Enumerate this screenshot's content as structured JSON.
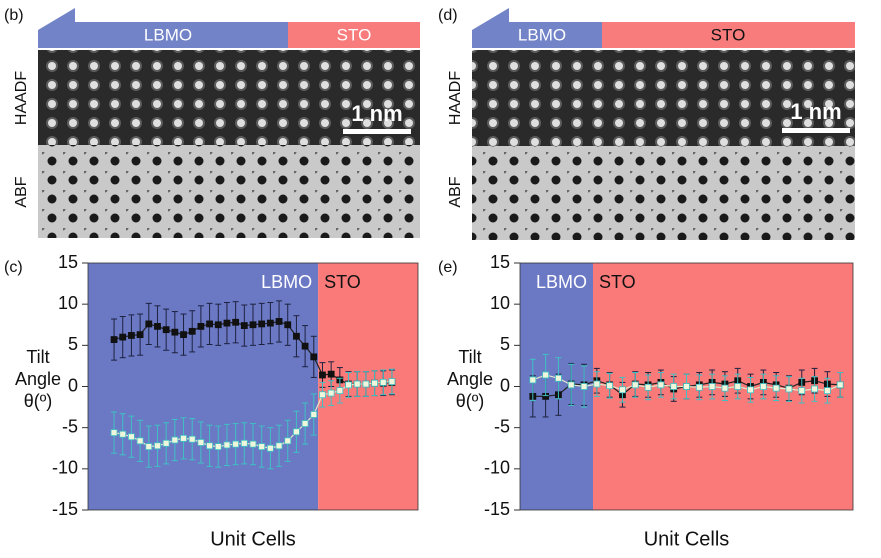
{
  "panels": [
    {
      "label": "(b)",
      "bar": [
        "LBMO",
        "STO"
      ],
      "rows": [
        "HAADF",
        "ABF"
      ],
      "scale": "1 nm"
    },
    {
      "label": "(d)",
      "bar": [
        "LBMO",
        "STO"
      ],
      "rows": [
        "HAADF",
        "ABF"
      ],
      "scale": "1 nm"
    }
  ],
  "chart_data": [
    {
      "type": "line",
      "label": "(c)",
      "xlabel": "Unit Cells",
      "ylabel": [
        "Tilt",
        "Angle",
        "θ(º)"
      ],
      "xlim": [
        0,
        38
      ],
      "ylim": [
        -15,
        15
      ],
      "yticks": [
        -15,
        -10,
        -5,
        0,
        5,
        10,
        15
      ],
      "regions": [
        {
          "name": "LBMO",
          "color": "#6b79c4",
          "xlim": [
            0,
            26.5
          ]
        },
        {
          "name": "STO",
          "color": "#fa7a7a",
          "xlim": [
            26.5,
            38
          ]
        }
      ],
      "x": [
        3,
        4,
        5,
        6,
        7,
        8,
        9,
        10,
        11,
        12,
        13,
        14,
        15,
        16,
        17,
        18,
        19,
        20,
        21,
        22,
        23,
        24,
        25,
        26,
        27,
        28,
        29,
        30,
        31,
        32,
        33,
        34,
        35
      ],
      "series": [
        {
          "color": "#111111",
          "error_color": "#1c2140",
          "values": [
            5.7,
            6.0,
            6.2,
            6.3,
            7.6,
            7.3,
            6.9,
            6.6,
            6.3,
            6.7,
            7.3,
            7.6,
            7.5,
            7.7,
            7.8,
            7.4,
            7.5,
            7.6,
            7.7,
            7.9,
            7.5,
            6.1,
            4.9,
            3.6,
            1.4,
            1.5,
            0.8,
            0.3,
            0.3,
            0.3,
            0.4,
            0.4,
            0.5
          ],
          "errors": [
            2.5,
            2.5,
            2.5,
            2.5,
            2.5,
            2.5,
            2.5,
            2.5,
            2.5,
            2.5,
            2.5,
            2.5,
            2.5,
            2.5,
            2.5,
            2.5,
            2.5,
            2.5,
            2.5,
            2.5,
            2.5,
            2.5,
            2.5,
            2.5,
            1.5,
            1.5,
            1.5,
            1.5,
            1.5,
            1.5,
            1.5,
            1.5,
            1.5
          ]
        },
        {
          "color": "#eef6dc",
          "error_color": "#3fc0c4",
          "values": [
            -5.6,
            -5.8,
            -6.1,
            -6.6,
            -7.3,
            -7.2,
            -6.9,
            -6.5,
            -6.3,
            -6.4,
            -6.8,
            -7.2,
            -7.3,
            -7.1,
            -7.0,
            -6.9,
            -7.0,
            -7.3,
            -7.5,
            -7.2,
            -6.6,
            -5.5,
            -4.5,
            -3.4,
            -1.0,
            -0.8,
            -0.5,
            0.2,
            0.3,
            0.3,
            0.4,
            0.5,
            0.6
          ],
          "errors": [
            2.5,
            2.5,
            2.5,
            2.5,
            2.5,
            2.5,
            2.5,
            2.5,
            2.5,
            2.5,
            2.5,
            2.5,
            2.5,
            2.5,
            2.5,
            2.5,
            2.5,
            2.5,
            2.5,
            2.5,
            2.5,
            2.5,
            2.5,
            2.5,
            1.5,
            1.5,
            1.5,
            1.5,
            1.5,
            1.5,
            1.5,
            1.5,
            1.5
          ]
        }
      ]
    },
    {
      "type": "line",
      "label": "(e)",
      "xlabel": "Unit Cells",
      "ylabel": [
        "Tilt",
        "Angle",
        "θ(º)"
      ],
      "xlim": [
        0,
        26
      ],
      "ylim": [
        -15,
        15
      ],
      "yticks": [
        -15,
        -10,
        -5,
        0,
        5,
        10,
        15
      ],
      "regions": [
        {
          "name": "LBMO",
          "color": "#6b79c4",
          "xlim": [
            0,
            5.7
          ]
        },
        {
          "name": "STO",
          "color": "#fa7a7a",
          "xlim": [
            5.7,
            26
          ]
        }
      ],
      "x": [
        1,
        2,
        3,
        4,
        5,
        6,
        7,
        8,
        9,
        10,
        11,
        12,
        13,
        14,
        15,
        16,
        17,
        18,
        19,
        20,
        21,
        22,
        23,
        24,
        25
      ],
      "series": [
        {
          "color": "#111111",
          "error_color": "#1c2140",
          "values": [
            -1.2,
            -1.2,
            -1.0,
            0.3,
            0.2,
            0.7,
            0.2,
            -1.0,
            0.3,
            0.2,
            0.5,
            -0.3,
            0.0,
            0.2,
            0.5,
            0.3,
            0.7,
            0.0,
            0.5,
            0.2,
            -0.2,
            0.5,
            0.7,
            0.3,
            0.2
          ],
          "errors": [
            2.5,
            2.5,
            2.5,
            2.5,
            2.5,
            1.5,
            1.5,
            1.5,
            1.5,
            1.5,
            1.5,
            1.5,
            1.5,
            1.5,
            1.5,
            1.5,
            1.5,
            1.5,
            1.5,
            1.5,
            1.5,
            1.5,
            1.5,
            1.5,
            1.5
          ]
        },
        {
          "color": "#eef6dc",
          "error_color": "#3fc0c4",
          "values": [
            0.8,
            1.4,
            1.0,
            0.2,
            0.0,
            0.3,
            0.1,
            -0.4,
            0.2,
            -0.1,
            0.2,
            0.0,
            0.0,
            -0.1,
            0.0,
            -0.2,
            0.0,
            -0.4,
            0.0,
            -0.2,
            -0.3,
            -0.5,
            -0.3,
            -0.5,
            0.2
          ],
          "errors": [
            2.5,
            2.5,
            2.5,
            2.5,
            2.5,
            1.5,
            1.5,
            1.5,
            1.5,
            1.5,
            1.5,
            1.5,
            1.5,
            1.5,
            1.5,
            1.5,
            1.5,
            1.5,
            1.5,
            1.5,
            1.5,
            1.5,
            1.5,
            1.5,
            1.5
          ]
        }
      ]
    }
  ]
}
